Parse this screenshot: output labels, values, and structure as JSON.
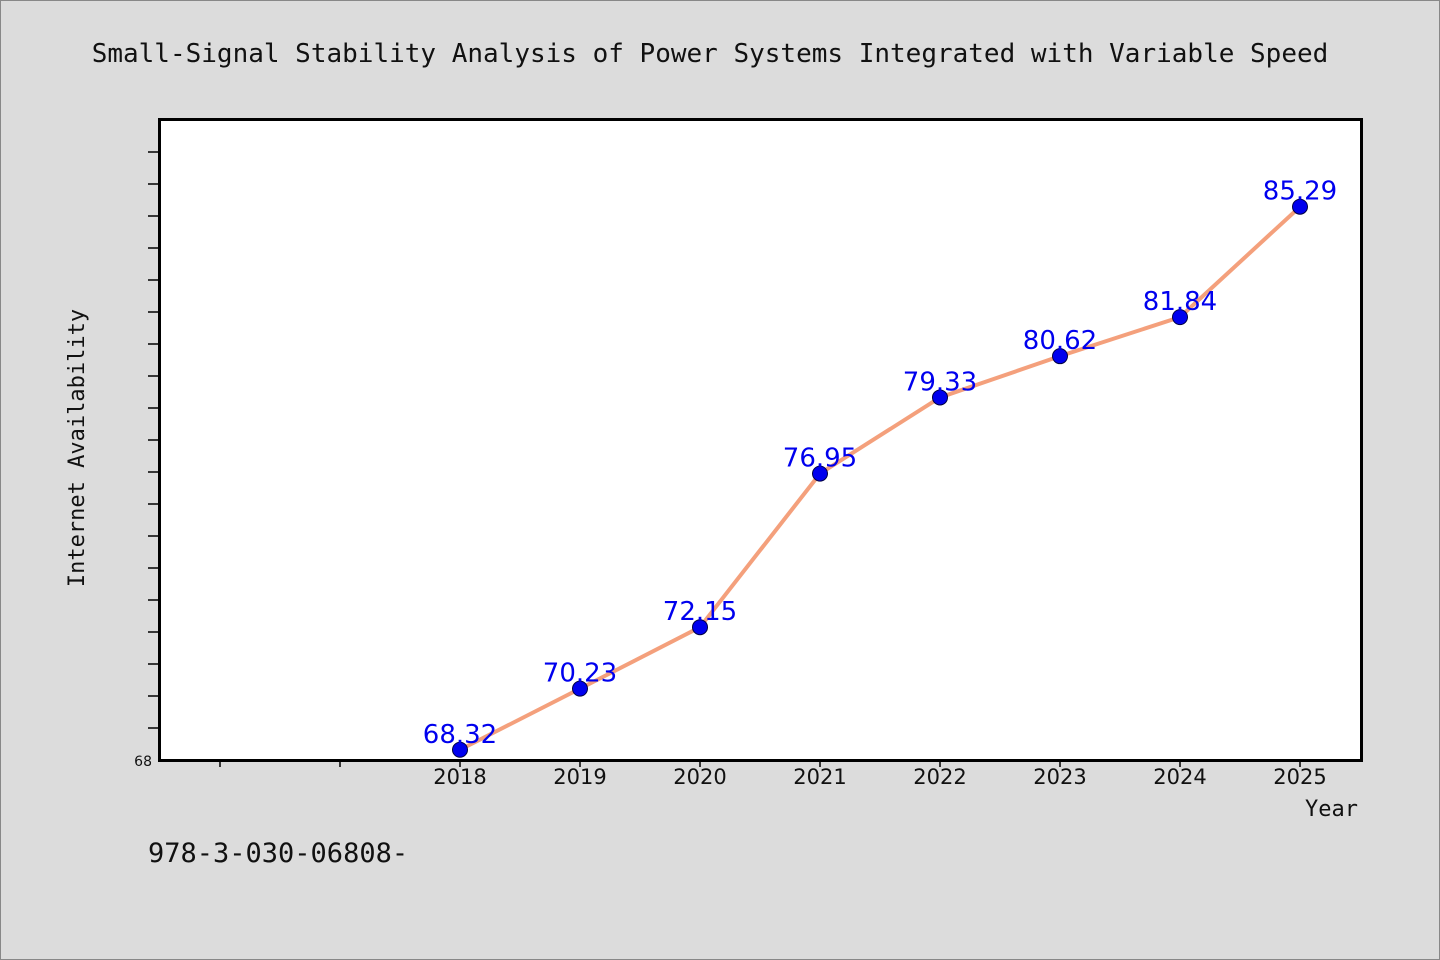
{
  "chart_data": {
    "type": "line",
    "title": "Small-Signal Stability Analysis of Power Systems Integrated with Variable Speed",
    "xlabel": "Year",
    "ylabel": "Internet Availability",
    "categories": [
      "2018",
      "2019",
      "2020",
      "2021",
      "2022",
      "2023",
      "2024",
      "2025"
    ],
    "series": [
      {
        "values": [
          68.32,
          70.23,
          72.15,
          76.95,
          79.33,
          80.62,
          81.84,
          85.29
        ],
        "value_labels": [
          "68.32",
          "70.23",
          "72.15",
          "76.95",
          "79.33",
          "80.62",
          "81.84",
          "85.29"
        ],
        "line_color": "#f4a07c",
        "marker_color": "#0000ee",
        "label_color": "#0000ee"
      }
    ],
    "ylim": [
      68,
      88
    ],
    "y_tick_labels": [
      "68"
    ],
    "grid": false,
    "legend": "none"
  },
  "footer": {
    "isbn_text": "978-3-030-06808-"
  },
  "colors": {
    "background": "#dcdcdc",
    "plot_background": "#ffffff",
    "axis": "#000000"
  }
}
